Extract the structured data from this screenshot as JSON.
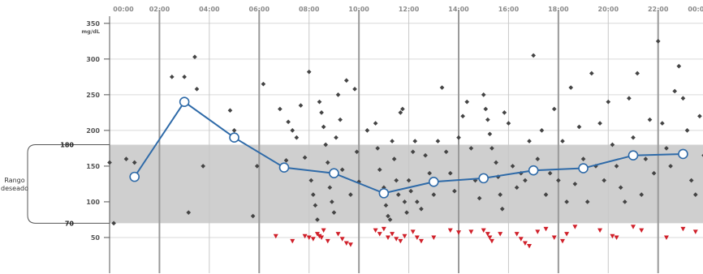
{
  "chart_data": {
    "type": "scatter",
    "title": "",
    "xlabel": "",
    "ylabel": "mg/dL",
    "y_unit": "mg/dL",
    "xlim": [
      "00:00",
      "24:00"
    ],
    "ylim": [
      0,
      360
    ],
    "x_ticks": [
      "00:00",
      "02:00",
      "04:00",
      "06:00",
      "08:00",
      "10:00",
      "12:00",
      "14:00",
      "16:00",
      "18:00",
      "20:00",
      "22:00",
      "00:00"
    ],
    "y_ticks": [
      350,
      300,
      250,
      200,
      150,
      100,
      50
    ],
    "grid": true,
    "target_range": {
      "label_line1": "Rango",
      "label_line2": "deseado",
      "low": 70,
      "high": 180,
      "low_label": "70",
      "high_label": "180",
      "color": "#cfcfcf"
    },
    "colors": {
      "readings": "#444444",
      "lows": "#d0202a",
      "median_line": "#2e6aa8"
    },
    "series": [
      {
        "type": "line",
        "points": [
          {
            "x": "01:00",
            "y": 135
          },
          {
            "x": "03:00",
            "y": 240
          },
          {
            "x": "05:00",
            "y": 190
          },
          {
            "x": "07:00",
            "y": 148
          },
          {
            "x": "09:00",
            "y": 140
          },
          {
            "x": "11:00",
            "y": 112
          },
          {
            "x": "13:00",
            "y": 128
          },
          {
            "x": "15:00",
            "y": 133
          },
          {
            "x": "17:00",
            "y": 144
          },
          {
            "x": "19:00",
            "y": 147
          },
          {
            "x": "21:00",
            "y": 165
          },
          {
            "x": "23:00",
            "y": 167
          }
        ]
      },
      {
        "type": "scatter",
        "points": [
          [
            "00:00",
            155
          ],
          [
            "00:10",
            70
          ],
          [
            "00:40",
            160
          ],
          [
            "01:00",
            155
          ],
          [
            "02:30",
            275
          ],
          [
            "03:00",
            275
          ],
          [
            "03:10",
            85
          ],
          [
            "03:25",
            303
          ],
          [
            "03:30",
            258
          ],
          [
            "03:45",
            150
          ],
          [
            "04:50",
            228
          ],
          [
            "05:00",
            200
          ],
          [
            "05:45",
            80
          ],
          [
            "05:55",
            150
          ],
          [
            "06:10",
            265
          ],
          [
            "06:50",
            230
          ],
          [
            "07:05",
            158
          ],
          [
            "07:10",
            212
          ],
          [
            "07:20",
            200
          ],
          [
            "07:30",
            190
          ],
          [
            "07:40",
            235
          ],
          [
            "07:50",
            162
          ],
          [
            "08:00",
            282
          ],
          [
            "08:05",
            130
          ],
          [
            "08:10",
            110
          ],
          [
            "08:15",
            95
          ],
          [
            "08:20",
            75
          ],
          [
            "08:25",
            240
          ],
          [
            "08:30",
            225
          ],
          [
            "08:35",
            205
          ],
          [
            "08:40",
            180
          ],
          [
            "08:45",
            155
          ],
          [
            "08:50",
            120
          ],
          [
            "08:55",
            100
          ],
          [
            "09:00",
            85
          ],
          [
            "09:05",
            190
          ],
          [
            "09:10",
            250
          ],
          [
            "09:15",
            215
          ],
          [
            "09:20",
            145
          ],
          [
            "09:30",
            270
          ],
          [
            "09:40",
            110
          ],
          [
            "09:50",
            258
          ],
          [
            "09:55",
            170
          ],
          [
            "10:00",
            128
          ],
          [
            "10:20",
            200
          ],
          [
            "10:40",
            210
          ],
          [
            "10:45",
            175
          ],
          [
            "10:50",
            145
          ],
          [
            "11:00",
            120
          ],
          [
            "11:05",
            95
          ],
          [
            "11:10",
            80
          ],
          [
            "11:15",
            75
          ],
          [
            "11:20",
            185
          ],
          [
            "11:25",
            160
          ],
          [
            "11:30",
            130
          ],
          [
            "11:35",
            110
          ],
          [
            "11:40",
            225
          ],
          [
            "11:45",
            230
          ],
          [
            "11:50",
            100
          ],
          [
            "11:55",
            85
          ],
          [
            "12:00",
            130
          ],
          [
            "12:05",
            115
          ],
          [
            "12:10",
            170
          ],
          [
            "12:15",
            185
          ],
          [
            "12:20",
            100
          ],
          [
            "12:30",
            90
          ],
          [
            "12:40",
            165
          ],
          [
            "12:50",
            140
          ],
          [
            "13:00",
            110
          ],
          [
            "13:10",
            185
          ],
          [
            "13:20",
            260
          ],
          [
            "13:30",
            170
          ],
          [
            "13:40",
            140
          ],
          [
            "13:50",
            115
          ],
          [
            "14:00",
            190
          ],
          [
            "14:10",
            220
          ],
          [
            "14:20",
            240
          ],
          [
            "14:30",
            175
          ],
          [
            "14:40",
            130
          ],
          [
            "14:50",
            105
          ],
          [
            "15:00",
            250
          ],
          [
            "15:05",
            230
          ],
          [
            "15:10",
            215
          ],
          [
            "15:15",
            195
          ],
          [
            "15:20",
            175
          ],
          [
            "15:30",
            155
          ],
          [
            "15:35",
            135
          ],
          [
            "15:40",
            110
          ],
          [
            "15:45",
            90
          ],
          [
            "15:50",
            225
          ],
          [
            "16:00",
            210
          ],
          [
            "16:10",
            150
          ],
          [
            "16:20",
            120
          ],
          [
            "16:30",
            140
          ],
          [
            "16:40",
            130
          ],
          [
            "16:50",
            185
          ],
          [
            "17:00",
            305
          ],
          [
            "17:10",
            160
          ],
          [
            "17:20",
            200
          ],
          [
            "17:30",
            110
          ],
          [
            "17:40",
            140
          ],
          [
            "17:50",
            230
          ],
          [
            "18:00",
            130
          ],
          [
            "18:10",
            185
          ],
          [
            "18:20",
            100
          ],
          [
            "18:30",
            260
          ],
          [
            "18:40",
            125
          ],
          [
            "18:50",
            205
          ],
          [
            "19:00",
            160
          ],
          [
            "19:10",
            100
          ],
          [
            "19:20",
            280
          ],
          [
            "19:30",
            150
          ],
          [
            "19:40",
            210
          ],
          [
            "19:50",
            130
          ],
          [
            "20:00",
            240
          ],
          [
            "20:10",
            180
          ],
          [
            "20:20",
            150
          ],
          [
            "20:30",
            120
          ],
          [
            "20:40",
            100
          ],
          [
            "20:50",
            245
          ],
          [
            "21:00",
            190
          ],
          [
            "21:10",
            280
          ],
          [
            "21:20",
            110
          ],
          [
            "21:30",
            160
          ],
          [
            "21:40",
            215
          ],
          [
            "21:50",
            140
          ],
          [
            "22:00",
            325
          ],
          [
            "22:10",
            210
          ],
          [
            "22:20",
            175
          ],
          [
            "22:30",
            150
          ],
          [
            "22:40",
            255
          ],
          [
            "22:50",
            290
          ],
          [
            "23:00",
            245
          ],
          [
            "23:10",
            200
          ],
          [
            "23:20",
            130
          ],
          [
            "23:30",
            110
          ],
          [
            "23:40",
            220
          ],
          [
            "23:50",
            165
          ]
        ]
      },
      {
        "type": "scatter",
        "marker": "triangle-down",
        "points": [
          [
            "06:40",
            52
          ],
          [
            "07:20",
            45
          ],
          [
            "07:50",
            52
          ],
          [
            "08:00",
            50
          ],
          [
            "08:10",
            48
          ],
          [
            "08:20",
            55
          ],
          [
            "08:25",
            52
          ],
          [
            "08:30",
            50
          ],
          [
            "08:35",
            60
          ],
          [
            "08:45",
            45
          ],
          [
            "09:10",
            55
          ],
          [
            "09:20",
            48
          ],
          [
            "09:30",
            42
          ],
          [
            "09:40",
            40
          ],
          [
            "10:40",
            60
          ],
          [
            "10:50",
            55
          ],
          [
            "11:00",
            62
          ],
          [
            "11:10",
            50
          ],
          [
            "11:20",
            55
          ],
          [
            "11:30",
            48
          ],
          [
            "11:40",
            45
          ],
          [
            "11:50",
            52
          ],
          [
            "12:10",
            58
          ],
          [
            "12:20",
            50
          ],
          [
            "12:30",
            45
          ],
          [
            "13:00",
            50
          ],
          [
            "13:40",
            60
          ],
          [
            "14:00",
            57
          ],
          [
            "14:30",
            58
          ],
          [
            "15:00",
            60
          ],
          [
            "15:10",
            55
          ],
          [
            "15:15",
            50
          ],
          [
            "15:20",
            45
          ],
          [
            "15:40",
            55
          ],
          [
            "16:20",
            55
          ],
          [
            "16:30",
            48
          ],
          [
            "16:40",
            42
          ],
          [
            "16:50",
            38
          ],
          [
            "17:10",
            58
          ],
          [
            "17:30",
            62
          ],
          [
            "17:50",
            50
          ],
          [
            "18:10",
            45
          ],
          [
            "18:20",
            55
          ],
          [
            "18:40",
            65
          ],
          [
            "19:40",
            60
          ],
          [
            "20:10",
            52
          ],
          [
            "20:20",
            50
          ],
          [
            "21:00",
            65
          ],
          [
            "21:20",
            60
          ],
          [
            "22:20",
            50
          ],
          [
            "23:00",
            62
          ],
          [
            "23:30",
            58
          ]
        ]
      }
    ]
  }
}
